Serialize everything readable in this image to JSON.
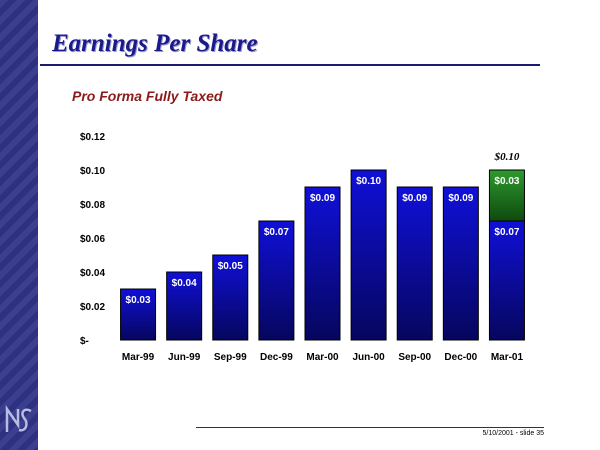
{
  "slide": {
    "title": "Earnings Per Share",
    "footer": "5/10/2001 - slide 35"
  },
  "colors": {
    "bar": "#1010d8",
    "bar_top_segment": "#1f7a1f",
    "title": "#1a1a8c",
    "subtitle": "#8b1a1a"
  },
  "chart_data": {
    "type": "bar",
    "title": "Pro Forma Fully Taxed",
    "stacked": true,
    "categories": [
      "Mar-99",
      "Jun-99",
      "Sep-99",
      "Dec-99",
      "Mar-00",
      "Jun-00",
      "Sep-00",
      "Dec-00",
      "Mar-01"
    ],
    "series": [
      {
        "values": [
          0.03,
          0.04,
          0.05,
          0.07,
          0.09,
          0.1,
          0.09,
          0.09,
          0.07
        ],
        "labels": [
          "$0.03",
          "$0.04",
          "$0.05",
          "$0.07",
          "$0.09",
          "$0.10",
          "$0.09",
          "$0.09",
          "$0.07"
        ]
      },
      {
        "values": [
          0,
          0,
          0,
          0,
          0,
          0,
          0,
          0,
          0.03
        ],
        "labels": [
          "",
          "",
          "",
          "",
          "",
          "",
          "",
          "",
          "$0.03"
        ]
      }
    ],
    "totals": [
      "",
      "",
      "",
      "",
      "",
      "",
      "",
      "",
      "$0.10"
    ],
    "ylim": [
      0,
      0.12
    ],
    "yticks": [
      0,
      0.02,
      0.04,
      0.06,
      0.08,
      0.1,
      0.12
    ],
    "ytick_labels": [
      "$-",
      "$0.02",
      "$0.04",
      "$0.06",
      "$0.08",
      "$0.10",
      "$0.12"
    ],
    "grid": false,
    "xlabel": "",
    "ylabel": ""
  }
}
